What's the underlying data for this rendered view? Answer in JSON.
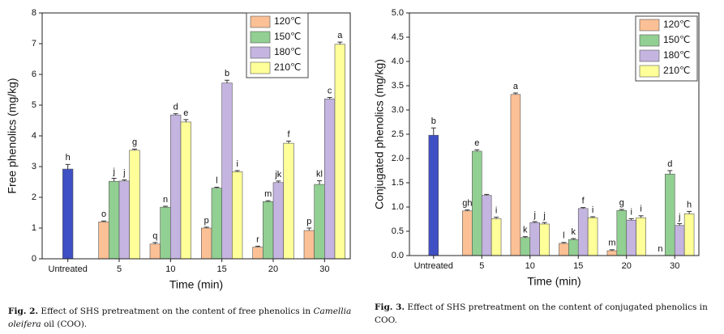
{
  "chart_data": [
    {
      "type": "bar",
      "x_label": "Time (min)",
      "y_label": "Free phenolics (mg/kg)",
      "categories": [
        "Untreated",
        "5",
        "10",
        "15",
        "20",
        "30"
      ],
      "ylim": [
        0,
        8
      ],
      "yticks": [
        0,
        1,
        2,
        3,
        4,
        5,
        6,
        7,
        8
      ],
      "legend": "upper right",
      "control": {
        "value": 2.92,
        "error": 0.15,
        "letter": "h",
        "color": "#3f4fc4"
      },
      "series": [
        {
          "name": "120℃",
          "color": "#fbc095",
          "values": [
            null,
            1.2,
            0.48,
            1.0,
            0.38,
            0.92
          ],
          "errors": [
            null,
            0.03,
            0.05,
            0.03,
            0.03,
            0.08
          ],
          "letters": [
            null,
            "o",
            "q",
            "p",
            "r",
            "p"
          ]
        },
        {
          "name": "150℃",
          "color": "#92cf92",
          "values": [
            null,
            2.52,
            1.68,
            2.3,
            1.86,
            2.42
          ],
          "errors": [
            null,
            0.1,
            0.03,
            0.03,
            0.03,
            0.12
          ],
          "letters": [
            null,
            "j",
            "n",
            "l",
            "m",
            "kl"
          ]
        },
        {
          "name": "180℃",
          "color": "#c4b4e0",
          "values": [
            null,
            2.53,
            4.68,
            5.72,
            2.48,
            5.2
          ],
          "errors": [
            null,
            0.04,
            0.04,
            0.09,
            0.05,
            0.05
          ],
          "letters": [
            null,
            "j",
            "d",
            "b",
            "jk",
            "c"
          ]
        },
        {
          "name": "210℃",
          "color": "#ffff99",
          "values": [
            null,
            3.53,
            4.45,
            2.83,
            3.76,
            6.98
          ],
          "errors": [
            null,
            0.04,
            0.08,
            0.04,
            0.07,
            0.07
          ],
          "letters": [
            null,
            "g",
            "e",
            "i",
            "f",
            "a"
          ]
        }
      ],
      "caption": {
        "label": "Fig. 2.",
        "text": "Effect of SHS pretreatment on the content of free phenolics in ",
        "italic": "Camellia oleifera",
        "text_after": " oil (COO)."
      }
    },
    {
      "type": "bar",
      "x_label": "Time (min)",
      "y_label": "Conjugated phenolics (mg/kg)",
      "categories": [
        "Untreated",
        "5",
        "10",
        "15",
        "20",
        "30"
      ],
      "ylim": [
        0,
        5
      ],
      "yticks": [
        {
          "value": 0,
          "label": "0.0"
        },
        0.5,
        {
          "value": 1,
          "label": "1.0"
        },
        1.5,
        {
          "value": 2,
          "label": "2.0"
        },
        2.5,
        {
          "value": 3,
          "label": "3.0"
        },
        3.5,
        {
          "value": 4,
          "label": "4.0"
        },
        4.5,
        {
          "value": 5,
          "label": "5.0"
        }
      ],
      "legend": "upper right",
      "control": {
        "value": 2.48,
        "error": 0.15,
        "letter": "b",
        "color": "#3f4fc4"
      },
      "series": [
        {
          "name": "120℃",
          "color": "#fbc095",
          "values": [
            null,
            0.92,
            3.32,
            0.25,
            0.1,
            0
          ],
          "errors": [
            null,
            0.02,
            0.03,
            0.02,
            0.02,
            0
          ],
          "letters": [
            null,
            "gh",
            "a",
            "l",
            "m",
            "n"
          ]
        },
        {
          "name": "150℃",
          "color": "#92cf92",
          "values": [
            null,
            2.15,
            0.37,
            0.33,
            0.93,
            1.68
          ],
          "errors": [
            null,
            0.03,
            0.02,
            0.02,
            0.02,
            0.07
          ],
          "letters": [
            null,
            "e",
            "k",
            "k",
            "g",
            "d"
          ]
        },
        {
          "name": "180℃",
          "color": "#c4b4e0",
          "values": [
            null,
            1.24,
            0.68,
            0.97,
            0.73,
            0.62
          ],
          "errors": [
            null,
            0.02,
            0.02,
            0.02,
            0.03,
            0.04
          ],
          "letters": [
            null,
            null,
            "j",
            "f",
            "i",
            "j"
          ]
        },
        {
          "name": "210℃",
          "color": "#ffff99",
          "values": [
            null,
            0.76,
            0.65,
            0.78,
            0.78,
            0.86
          ],
          "errors": [
            null,
            0.03,
            0.03,
            0.02,
            0.04,
            0.05
          ],
          "letters": [
            null,
            "i",
            "j",
            "i",
            "i",
            "h"
          ]
        }
      ],
      "caption": {
        "label": "Fig. 3.",
        "text": "Effect of SHS pretreatment on the content of conjugated phenolics in COO."
      }
    }
  ]
}
